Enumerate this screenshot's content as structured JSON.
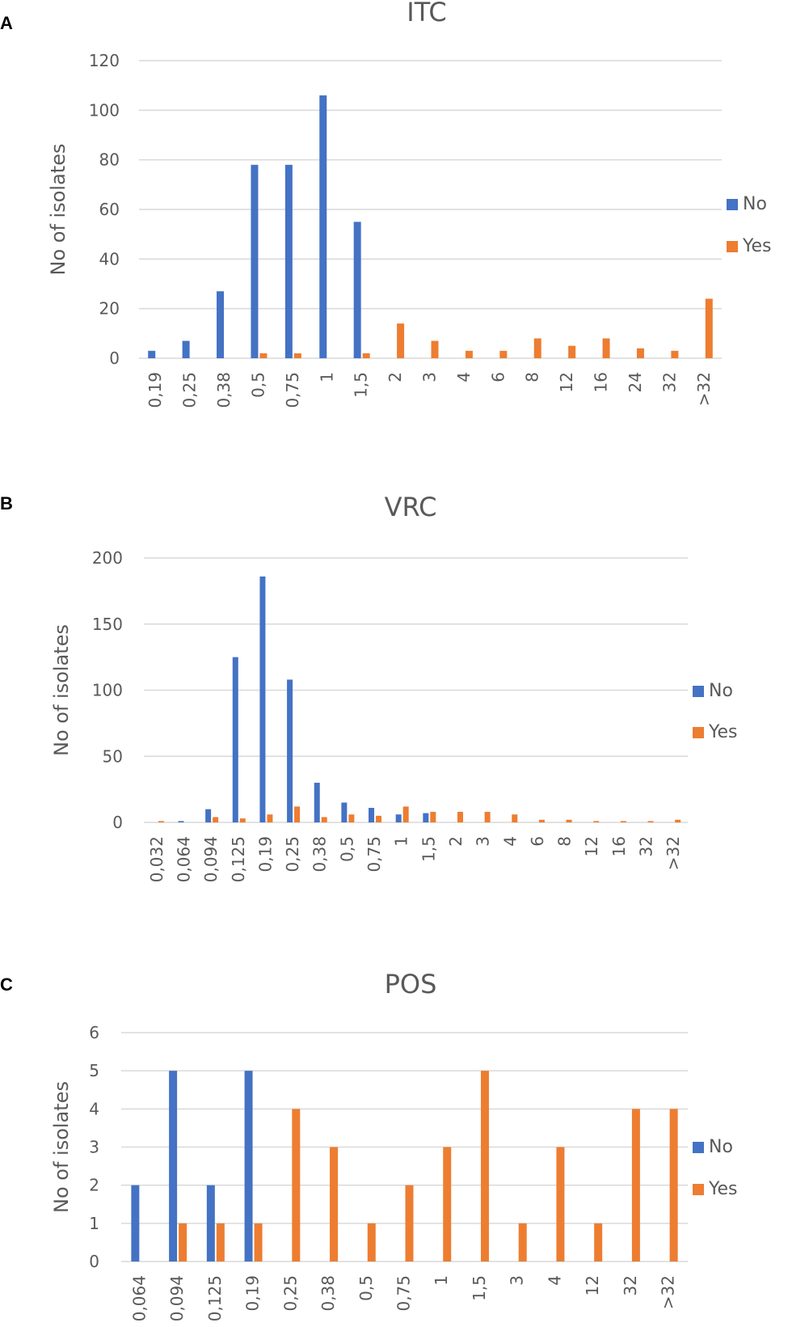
{
  "colors": {
    "no": "#4472c4",
    "yes": "#ed7d31"
  },
  "chart_data": [
    {
      "panel": "A",
      "type": "bar",
      "title": "ITC",
      "xlabel": "",
      "ylabel": "No of isolates",
      "ylim": [
        0,
        120
      ],
      "yticks": [
        0,
        20,
        40,
        60,
        80,
        100,
        120
      ],
      "categories": [
        "0,19",
        "0,25",
        "0,38",
        "0,5",
        "0,75",
        "1",
        "1,5",
        "2",
        "3",
        "4",
        "6",
        "8",
        "12",
        "16",
        "24",
        "32",
        ">32"
      ],
      "series": [
        {
          "name": "No",
          "values": [
            3,
            7,
            27,
            78,
            78,
            106,
            55,
            0,
            0,
            0,
            0,
            0,
            0,
            0,
            0,
            0,
            0
          ]
        },
        {
          "name": "Yes",
          "values": [
            0,
            0,
            0,
            2,
            2,
            0,
            2,
            14,
            7,
            3,
            3,
            8,
            5,
            8,
            4,
            3,
            24
          ]
        }
      ],
      "legend": [
        "No",
        "Yes"
      ],
      "legend_position": "right"
    },
    {
      "panel": "B",
      "type": "bar",
      "title": "VRC",
      "xlabel": "",
      "ylabel": "No of isolates",
      "ylim": [
        0,
        200
      ],
      "yticks": [
        0,
        50,
        100,
        150,
        200
      ],
      "categories": [
        "0,032",
        "0,064",
        "0,094",
        "0,125",
        "0,19",
        "0,25",
        "0,38",
        "0,5",
        "0,75",
        "1",
        "1,5",
        "2",
        "3",
        "4",
        "6",
        "8",
        "12",
        "16",
        "32",
        ">32"
      ],
      "series": [
        {
          "name": "No",
          "values": [
            0,
            1,
            10,
            125,
            186,
            108,
            30,
            15,
            11,
            6,
            7,
            0,
            0,
            0,
            0,
            0,
            0,
            0,
            0,
            0
          ]
        },
        {
          "name": "Yes",
          "values": [
            1,
            0,
            4,
            3,
            6,
            12,
            4,
            6,
            5,
            12,
            8,
            8,
            8,
            6,
            2,
            2,
            1,
            1,
            1,
            2
          ]
        }
      ],
      "legend": [
        "No",
        "Yes"
      ],
      "legend_position": "right"
    },
    {
      "panel": "C",
      "type": "bar",
      "title": "POS",
      "xlabel": "",
      "ylabel": "No of isolates",
      "ylim": [
        0,
        6
      ],
      "yticks": [
        0,
        1,
        2,
        3,
        4,
        5,
        6
      ],
      "categories": [
        "0,064",
        "0,094",
        "0,125",
        "0,19",
        "0,25",
        "0,38",
        "0,5",
        "0,75",
        "1",
        "1,5",
        "3",
        "4",
        "12",
        "32",
        ">32"
      ],
      "series": [
        {
          "name": "No",
          "values": [
            2,
            5,
            2,
            5,
            0,
            0,
            0,
            0,
            0,
            0,
            0,
            0,
            0,
            0,
            0
          ]
        },
        {
          "name": "Yes",
          "values": [
            0,
            1,
            1,
            1,
            4,
            3,
            1,
            2,
            3,
            5,
            1,
            3,
            1,
            4,
            4
          ]
        }
      ],
      "legend": [
        "No",
        "Yes"
      ],
      "legend_position": "right"
    }
  ]
}
